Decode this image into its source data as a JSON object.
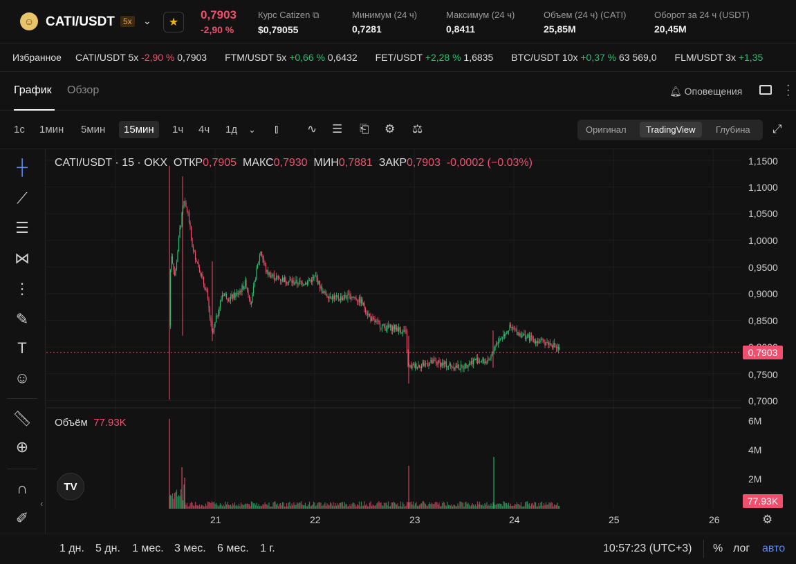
{
  "header": {
    "pair": "CATI/USDT",
    "leverage": "5x",
    "last_price": "0,7903",
    "change": "-2,90 %",
    "stats": [
      {
        "label": "Курс Catizen",
        "value": "$0,79055"
      },
      {
        "label": "Минимум (24 ч)",
        "value": "0,7281"
      },
      {
        "label": "Максимум (24 ч)",
        "value": "0,8411"
      },
      {
        "label": "Объем (24 ч) (CATI)",
        "value": "25,85M"
      },
      {
        "label": "Оборот за 24 ч (USDT)",
        "value": "20,45M"
      }
    ]
  },
  "ticker": {
    "favorites_label": "Избранное",
    "items": [
      {
        "name": "CATI/USDT 5x",
        "change": "-2,90 %",
        "dir": "down",
        "price": "0,7903"
      },
      {
        "name": "FTM/USDT 5x",
        "change": "+0,66 %",
        "dir": "up",
        "price": "0,6432"
      },
      {
        "name": "FET/USDT",
        "change": "+2,28 %",
        "dir": "up",
        "price": "1,6835"
      },
      {
        "name": "BTC/USDT 10x",
        "change": "+0,37 %",
        "dir": "up",
        "price": "63 569,0"
      },
      {
        "name": "FLM/USDT 3x",
        "change": "+1,35",
        "dir": "up",
        "price": ""
      }
    ]
  },
  "tabs": {
    "chart": "График",
    "overview": "Обзор",
    "alerts": "Оповещения"
  },
  "timeframes": [
    "1с",
    "1мин",
    "5мин",
    "15мин",
    "1ч",
    "4ч",
    "1д"
  ],
  "selected_timeframe": "15мин",
  "view_modes": {
    "original": "Оригинал",
    "tradingview": "TradingView",
    "depth": "Глубина",
    "selected": "TradingView"
  },
  "legend": {
    "title": "CATI/USDT · 15 · OKX",
    "open_label": "ОТКР",
    "open": "0,7905",
    "high_label": "МАКС",
    "high": "0,7930",
    "low_label": "МИН",
    "low": "0,7881",
    "close_label": "ЗАКР",
    "close": "0,7903",
    "delta": "-0,0002 (−0.03%)"
  },
  "price_axis": [
    "1,1500",
    "1,1000",
    "1,0500",
    "1,0000",
    "0,9500",
    "0,9000",
    "0,8500",
    "0,8000",
    "0,7500",
    "0,7000"
  ],
  "current_price_tag": "0,7903",
  "volume": {
    "label": "Объём",
    "value": "77.93K",
    "axis": [
      "6M",
      "4M",
      "2M"
    ],
    "tag": "77.93K"
  },
  "time_axis": [
    "21",
    "22",
    "23",
    "24",
    "25",
    "26"
  ],
  "ranges": [
    "1 дн.",
    "5 дн.",
    "1 мес.",
    "3 мес.",
    "6 мес.",
    "1 г."
  ],
  "clock": "10:57:23 (UTC+3)",
  "scale_opts": {
    "percent": "%",
    "log": "лог",
    "auto": "авто"
  },
  "tv_logo": "TV",
  "chart_data": {
    "type": "candlestick",
    "series": [
      {
        "values_start": 0.84,
        "values_peak": 1.12,
        "values_last": 0.7903
      }
    ],
    "ylim": [
      0.7,
      1.15
    ],
    "x_ticks": [
      "21",
      "22",
      "23",
      "24",
      "25",
      "26"
    ],
    "last_price": 0.7903,
    "volume_last": "77.93K",
    "volume_max": "6M"
  }
}
